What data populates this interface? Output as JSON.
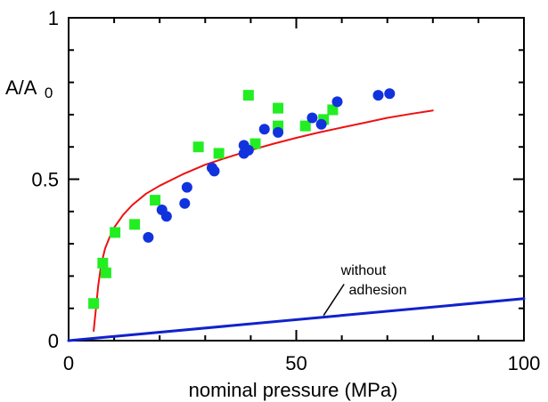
{
  "chart_data": {
    "type": "scatter",
    "xlabel": "nominal pressure (MPa)",
    "ylabel": {
      "main": "A/A",
      "sub": "0"
    },
    "xlim": [
      0,
      100
    ],
    "ylim": [
      0,
      1
    ],
    "x_ticks": [
      "0",
      "50",
      "100"
    ],
    "y_ticks": [
      "0",
      "0.5",
      "1"
    ],
    "grid": false,
    "colors": {
      "squares": "#22ee22",
      "circles": "#1133dd",
      "curve": "#ee1111",
      "line": "#1122cc",
      "axis": "#000000"
    },
    "series": [
      {
        "marker": "square",
        "points": [
          [
            5.5,
            0.115
          ],
          [
            7.5,
            0.24
          ],
          [
            8.2,
            0.21
          ],
          [
            10.2,
            0.335
          ],
          [
            14.5,
            0.36
          ],
          [
            19,
            0.435
          ],
          [
            28.5,
            0.6
          ],
          [
            33,
            0.58
          ],
          [
            39.5,
            0.76
          ],
          [
            41,
            0.61
          ],
          [
            46,
            0.72
          ],
          [
            46,
            0.665
          ],
          [
            52,
            0.665
          ],
          [
            56,
            0.685
          ],
          [
            58,
            0.715
          ]
        ]
      },
      {
        "marker": "circle",
        "points": [
          [
            17.5,
            0.32
          ],
          [
            20.5,
            0.405
          ],
          [
            21.5,
            0.385
          ],
          [
            25.5,
            0.425
          ],
          [
            26,
            0.475
          ],
          [
            31.5,
            0.535
          ],
          [
            32,
            0.525
          ],
          [
            38.5,
            0.605
          ],
          [
            38.5,
            0.58
          ],
          [
            39.5,
            0.59
          ],
          [
            43,
            0.655
          ],
          [
            46,
            0.645
          ],
          [
            53.5,
            0.69
          ],
          [
            55.5,
            0.67
          ],
          [
            59,
            0.74
          ],
          [
            68,
            0.76
          ],
          [
            70.5,
            0.765
          ]
        ]
      },
      {
        "type": "line",
        "style": "curve",
        "points": [
          [
            5.5,
            0.03
          ],
          [
            6,
            0.1
          ],
          [
            6.5,
            0.17
          ],
          [
            7,
            0.22
          ],
          [
            7.5,
            0.255
          ],
          [
            8,
            0.285
          ],
          [
            9,
            0.32
          ],
          [
            10,
            0.35
          ],
          [
            12,
            0.39
          ],
          [
            14,
            0.42
          ],
          [
            17,
            0.455
          ],
          [
            20,
            0.48
          ],
          [
            25,
            0.515
          ],
          [
            30,
            0.545
          ],
          [
            35,
            0.568
          ],
          [
            40,
            0.59
          ],
          [
            45,
            0.61
          ],
          [
            50,
            0.628
          ],
          [
            55,
            0.645
          ],
          [
            60,
            0.66
          ],
          [
            65,
            0.675
          ],
          [
            70,
            0.69
          ],
          [
            75,
            0.702
          ],
          [
            80,
            0.713
          ]
        ]
      },
      {
        "type": "line",
        "style": "straight",
        "points": [
          [
            0,
            0
          ],
          [
            100,
            0.13
          ]
        ]
      }
    ],
    "annotations": [
      {
        "line1": "without",
        "line2": "adhesion",
        "pointer_from": [
          60.5,
          0.175
        ],
        "pointer_to": [
          56,
          0.078
        ]
      }
    ]
  }
}
